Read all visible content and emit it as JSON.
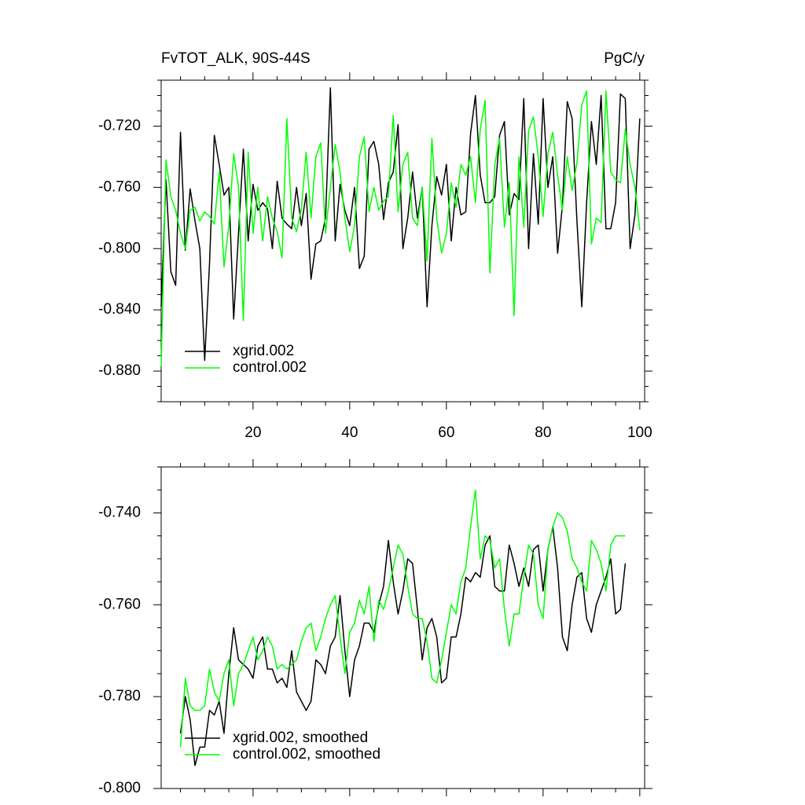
{
  "chart_data": [
    {
      "type": "line",
      "title": "FvTOT_ALK, 90S-44S",
      "units": "PgC/y",
      "x": [
        1,
        2,
        3,
        4,
        5,
        6,
        7,
        8,
        9,
        10,
        11,
        12,
        13,
        14,
        15,
        16,
        17,
        18,
        19,
        20,
        21,
        22,
        23,
        24,
        25,
        26,
        27,
        28,
        29,
        30,
        31,
        32,
        33,
        34,
        35,
        36,
        37,
        38,
        39,
        40,
        41,
        42,
        43,
        44,
        45,
        46,
        47,
        48,
        49,
        50,
        51,
        52,
        53,
        54,
        55,
        56,
        57,
        58,
        59,
        60,
        61,
        62,
        63,
        64,
        65,
        66,
        67,
        68,
        69,
        70,
        71,
        72,
        73,
        74,
        75,
        76,
        77,
        78,
        79,
        80,
        81,
        82,
        83,
        84,
        85,
        86,
        87,
        88,
        89,
        90,
        91,
        92,
        93,
        94,
        95,
        96,
        97,
        98,
        99,
        100
      ],
      "series": [
        {
          "name": "xgrid.002",
          "color": "#000000",
          "values": [
            -0.838,
            -0.755,
            -0.815,
            -0.824,
            -0.724,
            -0.801,
            -0.761,
            -0.782,
            -0.8,
            -0.873,
            -0.81,
            -0.726,
            -0.745,
            -0.765,
            -0.76,
            -0.846,
            -0.79,
            -0.735,
            -0.795,
            -0.758,
            -0.775,
            -0.77,
            -0.774,
            -0.8,
            -0.756,
            -0.78,
            -0.784,
            -0.787,
            -0.76,
            -0.785,
            -0.764,
            -0.82,
            -0.797,
            -0.795,
            -0.78,
            -0.695,
            -0.795,
            -0.758,
            -0.775,
            -0.785,
            -0.76,
            -0.813,
            -0.805,
            -0.735,
            -0.73,
            -0.745,
            -0.781,
            -0.757,
            -0.75,
            -0.719,
            -0.8,
            -0.78,
            -0.75,
            -0.78,
            -0.76,
            -0.838,
            -0.785,
            -0.753,
            -0.765,
            -0.745,
            -0.795,
            -0.76,
            -0.778,
            -0.776,
            -0.725,
            -0.7,
            -0.752,
            -0.77,
            -0.77,
            -0.766,
            -0.726,
            -0.717,
            -0.778,
            -0.764,
            -0.768,
            -0.702,
            -0.8,
            -0.738,
            -0.784,
            -0.702,
            -0.76,
            -0.74,
            -0.803,
            -0.772,
            -0.704,
            -0.715,
            -0.782,
            -0.838,
            -0.77,
            -0.717,
            -0.745,
            -0.7,
            -0.787,
            -0.787,
            -0.77,
            -0.699,
            -0.702,
            -0.8,
            -0.778,
            -0.715
          ]
        },
        {
          "name": "control.002",
          "color": "#00ff00",
          "values": [
            -0.877,
            -0.742,
            -0.766,
            -0.775,
            -0.79,
            -0.8,
            -0.775,
            -0.773,
            -0.782,
            -0.776,
            -0.779,
            -0.784,
            -0.75,
            -0.812,
            -0.785,
            -0.738,
            -0.76,
            -0.847,
            -0.737,
            -0.79,
            -0.76,
            -0.795,
            -0.766,
            -0.78,
            -0.789,
            -0.806,
            -0.715,
            -0.78,
            -0.789,
            -0.774,
            -0.737,
            -0.78,
            -0.74,
            -0.731,
            -0.79,
            -0.76,
            -0.732,
            -0.75,
            -0.78,
            -0.802,
            -0.785,
            -0.74,
            -0.727,
            -0.776,
            -0.76,
            -0.775,
            -0.769,
            -0.766,
            -0.713,
            -0.776,
            -0.745,
            -0.737,
            -0.78,
            -0.785,
            -0.76,
            -0.808,
            -0.728,
            -0.78,
            -0.803,
            -0.79,
            -0.757,
            -0.773,
            -0.745,
            -0.752,
            -0.74,
            -0.77,
            -0.722,
            -0.703,
            -0.816,
            -0.745,
            -0.728,
            -0.786,
            -0.757,
            -0.844,
            -0.74,
            -0.786,
            -0.723,
            -0.714,
            -0.74,
            -0.779,
            -0.738,
            -0.724,
            -0.752,
            -0.775,
            -0.74,
            -0.762,
            -0.744,
            -0.706,
            -0.697,
            -0.797,
            -0.78,
            -0.783,
            -0.697,
            -0.75,
            -0.755,
            -0.757,
            -0.722,
            -0.745,
            -0.76,
            -0.788
          ]
        }
      ],
      "xlim": [
        1,
        101
      ],
      "xticks": [
        20,
        40,
        60,
        80,
        100
      ],
      "ylim": [
        -0.9,
        -0.69
      ],
      "yticks": [
        {
          "value": -0.88,
          "label": "-0.880"
        },
        {
          "value": -0.84,
          "label": "-0.840"
        },
        {
          "value": -0.8,
          "label": "-0.800"
        },
        {
          "value": -0.76,
          "label": "-0.760"
        },
        {
          "value": -0.72,
          "label": "-0.720"
        }
      ],
      "xtick_labels": true,
      "legend": "lower left"
    },
    {
      "type": "line",
      "x": [
        5,
        6,
        7,
        8,
        9,
        10,
        11,
        12,
        13,
        14,
        15,
        16,
        17,
        18,
        19,
        20,
        21,
        22,
        23,
        24,
        25,
        26,
        27,
        28,
        29,
        30,
        31,
        32,
        33,
        34,
        35,
        36,
        37,
        38,
        39,
        40,
        41,
        42,
        43,
        44,
        45,
        46,
        47,
        48,
        49,
        50,
        51,
        52,
        53,
        54,
        55,
        56,
        57,
        58,
        59,
        60,
        61,
        62,
        63,
        64,
        65,
        66,
        67,
        68,
        69,
        70,
        71,
        72,
        73,
        74,
        75,
        76,
        77,
        78,
        79,
        80,
        81,
        82,
        83,
        84,
        85,
        86,
        87,
        88,
        89,
        90,
        91,
        92,
        93,
        94,
        95,
        96,
        97
      ],
      "series": [
        {
          "name": "xgrid.002, smoothed",
          "color": "#000000",
          "values": [
            -0.788,
            -0.78,
            -0.785,
            -0.795,
            -0.791,
            -0.791,
            -0.783,
            -0.784,
            -0.781,
            -0.788,
            -0.775,
            -0.765,
            -0.772,
            -0.773,
            -0.774,
            -0.776,
            -0.769,
            -0.767,
            -0.774,
            -0.774,
            -0.777,
            -0.776,
            -0.778,
            -0.77,
            -0.779,
            -0.781,
            -0.783,
            -0.781,
            -0.772,
            -0.773,
            -0.775,
            -0.769,
            -0.767,
            -0.758,
            -0.77,
            -0.78,
            -0.772,
            -0.769,
            -0.764,
            -0.764,
            -0.766,
            -0.76,
            -0.756,
            -0.746,
            -0.755,
            -0.762,
            -0.757,
            -0.75,
            -0.751,
            -0.761,
            -0.772,
            -0.765,
            -0.763,
            -0.767,
            -0.777,
            -0.776,
            -0.767,
            -0.767,
            -0.762,
            -0.754,
            -0.755,
            -0.753,
            -0.754,
            -0.747,
            -0.745,
            -0.756,
            -0.757,
            -0.757,
            -0.747,
            -0.751,
            -0.756,
            -0.752,
            -0.756,
            -0.748,
            -0.747,
            -0.757,
            -0.748,
            -0.743,
            -0.752,
            -0.767,
            -0.77,
            -0.76,
            -0.754,
            -0.753,
            -0.763,
            -0.766,
            -0.76,
            -0.757,
            -0.754,
            -0.75,
            -0.762,
            -0.761,
            -0.751
          ]
        },
        {
          "name": "control.002, smoothed",
          "color": "#00ff00",
          "values": [
            -0.791,
            -0.776,
            -0.782,
            -0.783,
            -0.783,
            -0.782,
            -0.774,
            -0.779,
            -0.781,
            -0.775,
            -0.772,
            -0.782,
            -0.775,
            -0.773,
            -0.77,
            -0.767,
            -0.772,
            -0.77,
            -0.767,
            -0.769,
            -0.774,
            -0.773,
            -0.774,
            -0.773,
            -0.772,
            -0.768,
            -0.765,
            -0.764,
            -0.77,
            -0.767,
            -0.763,
            -0.76,
            -0.758,
            -0.767,
            -0.775,
            -0.766,
            -0.764,
            -0.759,
            -0.762,
            -0.756,
            -0.768,
            -0.759,
            -0.761,
            -0.757,
            -0.752,
            -0.747,
            -0.749,
            -0.756,
            -0.762,
            -0.763,
            -0.763,
            -0.768,
            -0.776,
            -0.777,
            -0.772,
            -0.766,
            -0.76,
            -0.762,
            -0.755,
            -0.752,
            -0.743,
            -0.735,
            -0.75,
            -0.745,
            -0.746,
            -0.752,
            -0.75,
            -0.761,
            -0.769,
            -0.762,
            -0.762,
            -0.754,
            -0.747,
            -0.749,
            -0.76,
            -0.763,
            -0.748,
            -0.743,
            -0.74,
            -0.741,
            -0.744,
            -0.75,
            -0.752,
            -0.755,
            -0.757,
            -0.746,
            -0.748,
            -0.751,
            -0.757,
            -0.747,
            -0.745,
            -0.745,
            -0.745
          ]
        }
      ],
      "xlim": [
        1,
        101
      ],
      "xticks": [
        20,
        40,
        60,
        80,
        100
      ],
      "ylim": [
        -0.8,
        -0.73
      ],
      "yticks": [
        {
          "value": -0.8,
          "label": "-0.800"
        },
        {
          "value": -0.78,
          "label": "-0.780"
        },
        {
          "value": -0.76,
          "label": "-0.760"
        },
        {
          "value": -0.74,
          "label": "-0.740"
        }
      ],
      "xtick_labels": false,
      "legend": "lower left"
    }
  ]
}
